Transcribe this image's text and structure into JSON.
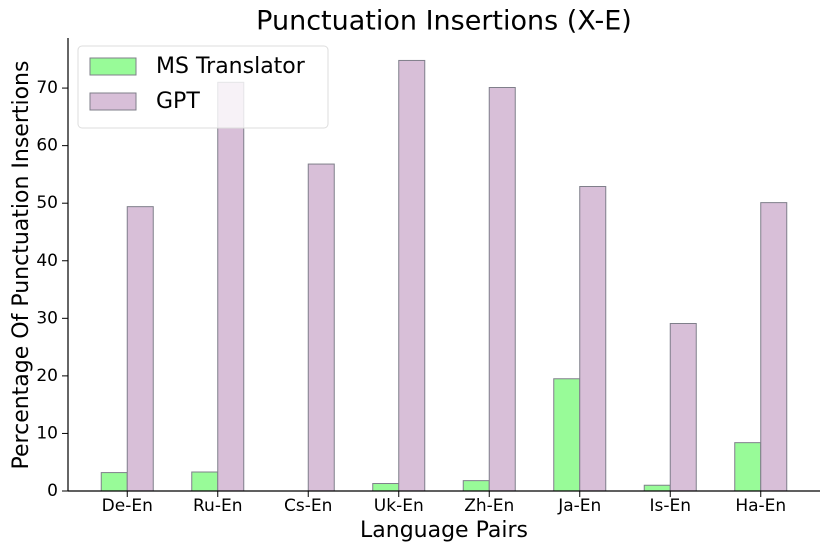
{
  "chart_data": {
    "type": "bar",
    "title": "Punctuation Insertions (X-E)",
    "x_label": "Language Pairs",
    "y_label": "Percentage Of Punctuation Insertions",
    "categories": [
      "De-En",
      "Ru-En",
      "Cs-En",
      "Uk-En",
      "Zh-En",
      "Ja-En",
      "Is-En",
      "Ha-En"
    ],
    "series": [
      {
        "name": "MS Translator",
        "color": "#98fb98",
        "values": [
          3.2,
          3.3,
          0,
          1.3,
          1.8,
          19.5,
          1.0,
          8.4
        ]
      },
      {
        "name": "GPT",
        "color": "#d8bfd8",
        "values": [
          49.4,
          71.0,
          56.8,
          74.8,
          70.1,
          52.9,
          29.1,
          50.1
        ]
      }
    ],
    "ylim": [
      0,
      78.7
    ],
    "yticks": [
      0,
      10,
      20,
      30,
      40,
      50,
      60,
      70
    ],
    "legend": "upper left",
    "grid": false
  }
}
